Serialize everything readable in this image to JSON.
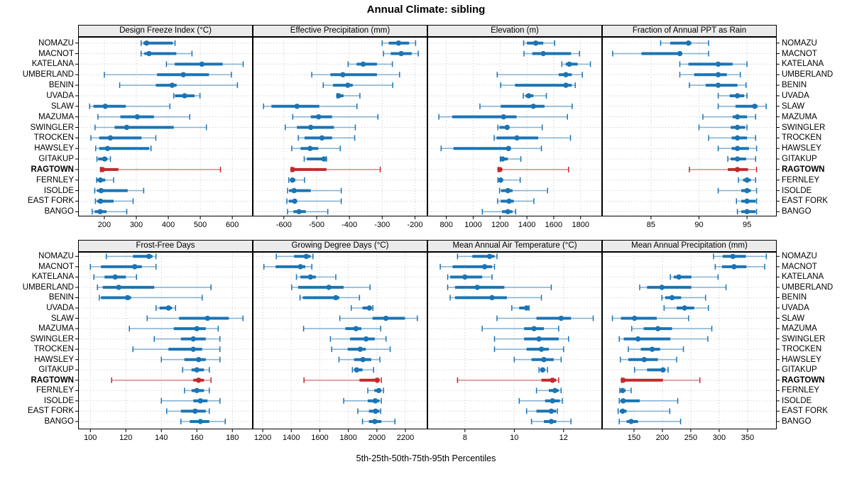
{
  "title": "Annual Climate: sibling",
  "caption": "5th-25th-50th-75th-95th Percentiles",
  "percentiles": [
    "5th",
    "25th",
    "50th",
    "75th",
    "95th"
  ],
  "stations": [
    "NOMAZU",
    "MACNOT",
    "KATELANA",
    "UMBERLAND",
    "BENIN",
    "UVADA",
    "SLAW",
    "MAZUMA",
    "SWINGLER",
    "TROCKEN",
    "HAWSLEY",
    "GITAKUP",
    "RAGTOWN",
    "FERNLEY",
    "ISOLDE",
    "EAST FORK",
    "BANGO"
  ],
  "highlight_station": "RAGTOWN",
  "colors": {
    "series": "#1b74b4",
    "highlight": "#c3292b",
    "strip_bg": "#ebebeb",
    "grid": "#c6c6c6",
    "border": "#000000"
  },
  "chart_data": [
    {
      "type": "dotplot",
      "row": 0,
      "col": 0,
      "title": "Design Freeze Index (°C)",
      "xlim": [
        118,
        664
      ],
      "ticks": [
        200,
        300,
        400,
        500,
        600
      ],
      "values": [
        [
          315,
          322,
          332,
          414,
          421
        ],
        [
          315,
          325,
          340,
          425,
          474
        ],
        [
          394,
          420,
          505,
          570,
          634
        ],
        [
          200,
          365,
          447,
          527,
          597
        ],
        [
          248,
          361,
          412,
          426,
          616
        ],
        [
          417,
          421,
          451,
          482,
          499
        ],
        [
          154,
          166,
          203,
          267,
          405
        ],
        [
          180,
          250,
          303,
          355,
          467
        ],
        [
          171,
          232,
          270,
          417,
          519
        ],
        [
          158,
          184,
          219,
          316,
          361
        ],
        [
          173,
          184,
          210,
          340,
          346
        ],
        [
          177,
          181,
          201,
          210,
          219
        ],
        [
          188,
          190,
          194,
          244,
          563
        ],
        [
          176,
          177,
          188,
          203,
          229
        ],
        [
          170,
          177,
          190,
          273,
          323
        ],
        [
          172,
          177,
          188,
          229,
          290
        ],
        [
          162,
          170,
          187,
          207,
          270
        ]
      ]
    },
    {
      "type": "dotplot",
      "row": 0,
      "col": 1,
      "title": "Effective Precipitation (mm)",
      "xlim": [
        -695,
        -162
      ],
      "ticks": [
        -600,
        -500,
        -400,
        -300,
        -200
      ],
      "values": [
        [
          -300,
          -280,
          -250,
          -218,
          -198
        ],
        [
          -296,
          -274,
          -242,
          -210,
          -190
        ],
        [
          -404,
          -378,
          -358,
          -316,
          -269
        ],
        [
          -515,
          -458,
          -420,
          -316,
          -247
        ],
        [
          -480,
          -450,
          -405,
          -390,
          -268
        ],
        [
          -438,
          -436,
          -433,
          -418,
          -368
        ],
        [
          -662,
          -638,
          -560,
          -492,
          -377
        ],
        [
          -573,
          -518,
          -494,
          -453,
          -313
        ],
        [
          -596,
          -560,
          -518,
          -447,
          -382
        ],
        [
          -556,
          -537,
          -484,
          -453,
          -384
        ],
        [
          -576,
          -549,
          -520,
          -495,
          -428
        ],
        [
          -538,
          -530,
          -478,
          -473,
          -470
        ],
        [
          -578,
          -576,
          -573,
          -470,
          -306
        ],
        [
          -585,
          -580,
          -574,
          -565,
          -537
        ],
        [
          -589,
          -584,
          -569,
          -518,
          -425
        ],
        [
          -591,
          -585,
          -567,
          -560,
          -425
        ],
        [
          -589,
          -571,
          -554,
          -533,
          -466
        ]
      ]
    },
    {
      "type": "dotplot",
      "row": 0,
      "col": 2,
      "title": "Elevation (m)",
      "xlim": [
        659,
        1960
      ],
      "ticks": [
        800,
        1000,
        1200,
        1400,
        1600,
        1800
      ],
      "values": [
        [
          1376,
          1400,
          1466,
          1522,
          1607
        ],
        [
          1378,
          1440,
          1522,
          1729,
          1792
        ],
        [
          1660,
          1690,
          1716,
          1778,
          1873
        ],
        [
          1179,
          1637,
          1690,
          1734,
          1813
        ],
        [
          1205,
          1311,
          1690,
          1734,
          1760
        ],
        [
          1373,
          1390,
          1413,
          1448,
          1545
        ],
        [
          1050,
          1205,
          1448,
          1531,
          1737
        ],
        [
          744,
          844,
          1226,
          1323,
          1702
        ],
        [
          1184,
          1196,
          1253,
          1267,
          1514
        ],
        [
          1156,
          1174,
          1325,
          1484,
          1725
        ],
        [
          761,
          853,
          1263,
          1276,
          1508
        ],
        [
          1202,
          1205,
          1219,
          1258,
          1355
        ],
        [
          1185,
          1193,
          1199,
          1212,
          1710
        ],
        [
          1184,
          1191,
          1205,
          1219,
          1350
        ],
        [
          1196,
          1208,
          1258,
          1293,
          1554
        ],
        [
          1182,
          1205,
          1267,
          1302,
          1452
        ],
        [
          1068,
          1214,
          1258,
          1293,
          1316
        ]
      ]
    },
    {
      "type": "dotplot",
      "row": 0,
      "col": 3,
      "title": "Fraction of Annual PPT as Rain",
      "xlim": [
        79.9,
        98.1
      ],
      "ticks": [
        85,
        90,
        95
      ],
      "values": [
        [
          86,
          87,
          88.9,
          89.2,
          91
        ],
        [
          81,
          84,
          88,
          88.2,
          91
        ],
        [
          88,
          88.9,
          92,
          93.5,
          95
        ],
        [
          88,
          89.5,
          92,
          92.9,
          94.3
        ],
        [
          89,
          90.7,
          92,
          94,
          94.9
        ],
        [
          92,
          93.2,
          94,
          94.7,
          95
        ],
        [
          92,
          93.8,
          95.8,
          96.1,
          97
        ],
        [
          90.4,
          93.5,
          94,
          95,
          95.9
        ],
        [
          90,
          93.3,
          94,
          94.8,
          95
        ],
        [
          91,
          93.4,
          94,
          95,
          95.9
        ],
        [
          92,
          93.4,
          94,
          95.2,
          96
        ],
        [
          93,
          93.3,
          94,
          94.9,
          95.9
        ],
        [
          89,
          93,
          94,
          95.1,
          96
        ],
        [
          94.1,
          94.6,
          95,
          95.4,
          95.9
        ],
        [
          92,
          94.4,
          95,
          95.4,
          96
        ],
        [
          93.9,
          94.4,
          95,
          95.9,
          96
        ],
        [
          94,
          94.4,
          95,
          95.9,
          96
        ]
      ]
    },
    {
      "type": "dotplot",
      "row": 1,
      "col": 0,
      "title": "Frost-Free Days",
      "xlim": [
        93.1,
        191.5
      ],
      "ticks": [
        100,
        120,
        140,
        160,
        180
      ],
      "values": [
        [
          109,
          124,
          133,
          135,
          137
        ],
        [
          100,
          106,
          125,
          129,
          137
        ],
        [
          102,
          108,
          114,
          120,
          126
        ],
        [
          104,
          107,
          116,
          136,
          168
        ],
        [
          105,
          106,
          121,
          123,
          163
        ],
        [
          137,
          139,
          144,
          146,
          148
        ],
        [
          132,
          150,
          166,
          178,
          186
        ],
        [
          122,
          147,
          160,
          165,
          172
        ],
        [
          136,
          151,
          158,
          165,
          173
        ],
        [
          124,
          144,
          158,
          163,
          173
        ],
        [
          140,
          153,
          161,
          165,
          173
        ],
        [
          152,
          157,
          160,
          164,
          167
        ],
        [
          112,
          158,
          161,
          164,
          168
        ],
        [
          153,
          157,
          160,
          164,
          167
        ],
        [
          140,
          158,
          162,
          166,
          173
        ],
        [
          143,
          151,
          159,
          165,
          167
        ],
        [
          151,
          156,
          162,
          167,
          176
        ]
      ]
    },
    {
      "type": "dotplot",
      "row": 1,
      "col": 1,
      "title": "Growing Degree Days (°C)",
      "xlim": [
        1130,
        2354
      ],
      "ticks": [
        1200,
        1400,
        1600,
        1800,
        2000,
        2200
      ],
      "values": [
        [
          1295,
          1420,
          1505,
          1535,
          1552
        ],
        [
          1208,
          1290,
          1464,
          1498,
          1544
        ],
        [
          1436,
          1464,
          1534,
          1572,
          1712
        ],
        [
          1403,
          1448,
          1663,
          1767,
          1952
        ],
        [
          1461,
          1481,
          1712,
          1737,
          1878
        ],
        [
          1820,
          1899,
          1947,
          1965,
          1972
        ],
        [
          1740,
          1969,
          2063,
          2197,
          2283
        ],
        [
          1486,
          1779,
          1853,
          1891,
          2026
        ],
        [
          1674,
          1812,
          1924,
          1985,
          2064
        ],
        [
          1683,
          1795,
          1883,
          1922,
          2093
        ],
        [
          1734,
          1840,
          1902,
          1960,
          2021
        ],
        [
          1828,
          1840,
          1858,
          1899,
          1977
        ],
        [
          1489,
          1878,
          2002,
          2015,
          2031
        ],
        [
          1936,
          1982,
          2013,
          2031,
          2046
        ],
        [
          1767,
          1936,
          1988,
          2018,
          2031
        ],
        [
          1866,
          1944,
          1990,
          2018,
          2026
        ],
        [
          1899,
          1944,
          1985,
          2031,
          2126
        ]
      ]
    },
    {
      "type": "dotplot",
      "row": 1,
      "col": 2,
      "title": "Mean Annual Air Temperature (°C)",
      "xlim": [
        6.48,
        13.56
      ],
      "ticks": [
        8,
        10,
        12
      ],
      "values": [
        [
          7.7,
          8.3,
          9,
          9.2,
          9.3
        ],
        [
          7,
          7.5,
          8.8,
          9.1,
          9.2
        ],
        [
          7.3,
          7.4,
          8,
          8.7,
          9.1
        ],
        [
          7.3,
          7.6,
          8.5,
          9.6,
          11.5
        ],
        [
          7.4,
          7.6,
          9.1,
          9.7,
          11.1
        ],
        [
          9.9,
          10.2,
          10.5,
          10.55,
          10.6
        ],
        [
          9.3,
          10.9,
          11.9,
          12.3,
          13.2
        ],
        [
          8.7,
          10.4,
          10.8,
          11.2,
          11.8
        ],
        [
          9.2,
          10.4,
          11,
          11.8,
          12.2
        ],
        [
          9.2,
          10.5,
          11.1,
          11.4,
          12
        ],
        [
          10,
          10.7,
          11.2,
          11.6,
          11.9
        ],
        [
          11,
          11.05,
          11.15,
          11.25,
          11.35
        ],
        [
          7.7,
          11.1,
          11.55,
          11.7,
          11.8
        ],
        [
          10.9,
          11.4,
          11.65,
          11.8,
          11.9
        ],
        [
          10.2,
          11.25,
          11.55,
          11.85,
          11.95
        ],
        [
          10.5,
          10.9,
          11.5,
          11.7,
          11.75
        ],
        [
          10.7,
          11.2,
          11.5,
          11.7,
          12.3
        ]
      ]
    },
    {
      "type": "dotplot",
      "row": 1,
      "col": 3,
      "title": "Mean Annual Precipitation (mm)",
      "xlim": [
        93.8,
        401.3
      ],
      "ticks": [
        150,
        200,
        250,
        300,
        350
      ],
      "values": [
        [
          290,
          306,
          324,
          347,
          383
        ],
        [
          293,
          305,
          326,
          348,
          380
        ],
        [
          214,
          220,
          229,
          251,
          298
        ],
        [
          160,
          173,
          199,
          251,
          312
        ],
        [
          199,
          205,
          217,
          233,
          276
        ],
        [
          203,
          225,
          239,
          256,
          281
        ],
        [
          112,
          127,
          151,
          190,
          246
        ],
        [
          146,
          167,
          192,
          217,
          287
        ],
        [
          124,
          132,
          157,
          214,
          280
        ],
        [
          140,
          162,
          182,
          196,
          237
        ],
        [
          126,
          140,
          168,
          192,
          225
        ],
        [
          151,
          173,
          201,
          205,
          210
        ],
        [
          128,
          129,
          131,
          201,
          266
        ],
        [
          125,
          126,
          130,
          135,
          145
        ],
        [
          124,
          126,
          131,
          160,
          227
        ],
        [
          122,
          125,
          130,
          137,
          213
        ],
        [
          124,
          137,
          145,
          157,
          232
        ]
      ]
    }
  ]
}
